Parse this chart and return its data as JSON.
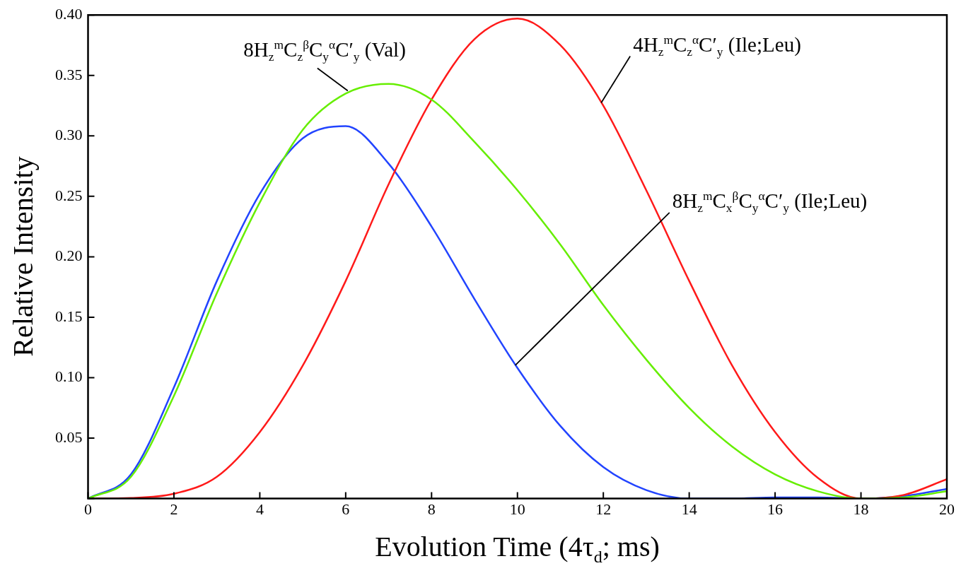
{
  "chart_data": {
    "type": "line",
    "xlabel": "Evolution Time (4τ$_{d}$; ms)",
    "ylabel": "Relative Intensity",
    "x": [
      0,
      1,
      2,
      3,
      4,
      5,
      6,
      7,
      8,
      9,
      10,
      11,
      12,
      13,
      14,
      15,
      16,
      17,
      18,
      19,
      20
    ],
    "series": [
      {
        "name": "8H$_{z}$$^{m}$C$_{z}$$^{β}$C$_{y}$$^{α}$C′$_{y}$ (Val)",
        "color": "#66ee00",
        "values": [
          0,
          0.018,
          0.085,
          0.17,
          0.245,
          0.305,
          0.335,
          0.343,
          0.33,
          0.295,
          0.255,
          0.21,
          0.16,
          0.115,
          0.075,
          0.043,
          0.02,
          0.006,
          0,
          0.001,
          0.006
        ]
      },
      {
        "name": "4H$_{z}$$^{m}$C$_{z}$$^{α}$C′$_{y}$ (Ile;Leu)",
        "color": "#ff1a1a",
        "values": [
          0,
          0.0005,
          0.004,
          0.018,
          0.055,
          0.11,
          0.18,
          0.26,
          0.33,
          0.38,
          0.397,
          0.375,
          0.325,
          0.255,
          0.18,
          0.11,
          0.055,
          0.017,
          0,
          0.003,
          0.016
        ]
      },
      {
        "name": "8H$_{z}$$^{m}$C$_{x}$$^{β}$C$_{y}$$^{α}$C′$_{y}$ (Ile;Leu)",
        "color": "#2244ff",
        "values": [
          0,
          0.02,
          0.092,
          0.18,
          0.252,
          0.298,
          0.308,
          0.277,
          0.225,
          0.165,
          0.108,
          0.06,
          0.026,
          0.007,
          0,
          0,
          0.001,
          0.001,
          0,
          0.002,
          0.008
        ]
      }
    ],
    "xlim": [
      0,
      20
    ],
    "xticks": [
      0,
      2,
      4,
      6,
      8,
      10,
      12,
      14,
      16,
      18,
      20
    ],
    "ylim": [
      0,
      0.4
    ],
    "yticks": [
      {
        "value": 0,
        "label": null
      },
      0.05,
      {
        "value": 0.1,
        "label": "0.10"
      },
      0.15,
      {
        "value": 0.2,
        "label": "0.20"
      },
      0.25,
      {
        "value": 0.3,
        "label": "0.30"
      },
      0.35,
      {
        "value": 0.4,
        "label": "0.40"
      }
    ],
    "grid": false,
    "legend": false,
    "marker": "none",
    "line_style": "solid"
  }
}
